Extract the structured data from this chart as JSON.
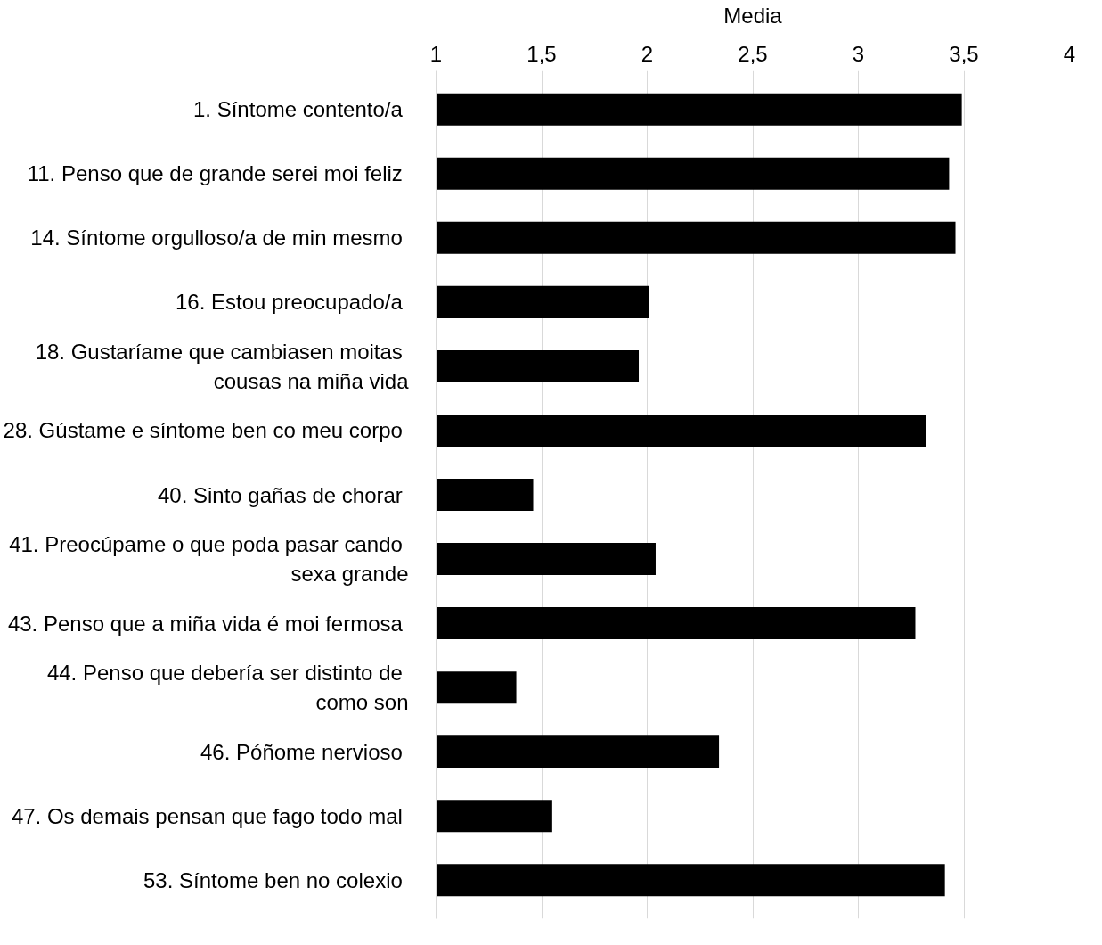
{
  "chart_data": {
    "type": "bar",
    "orientation": "horizontal",
    "xlabel": "Media",
    "categories": [
      "1.  Síntome contento/a",
      "11.  Penso que de grande serei moi feliz",
      "14.  Síntome orgulloso/a de min mesmo",
      "16.  Estou preocupado/a",
      "18.  Gustaríame que cambiasen moitas cousas na miña vida",
      "28.  Gústame e síntome ben co meu corpo",
      "40.  Sinto gañas de chorar",
      "41.  Preocúpame o que poda pasar cando sexa grande",
      "43.  Penso que a miña vida é moi fermosa",
      "44.  Penso que debería ser distinto de como son",
      "46.  Póñome nervioso",
      "47.  Os demais pensan que fago todo mal",
      "53.  Síntome ben no colexio"
    ],
    "values": [
      3.49,
      3.43,
      3.46,
      2.01,
      1.96,
      3.32,
      1.46,
      2.04,
      3.27,
      1.38,
      2.34,
      1.55,
      3.41
    ],
    "color": "#000000",
    "xlim": [
      1,
      4
    ],
    "xticks": [
      1,
      {
        "value": 1.5,
        "label": "1,5"
      },
      2,
      {
        "value": 2.5,
        "label": "2,5"
      },
      3,
      {
        "value": 3.5,
        "label": "3,5"
      },
      4
    ],
    "grid": "x"
  }
}
